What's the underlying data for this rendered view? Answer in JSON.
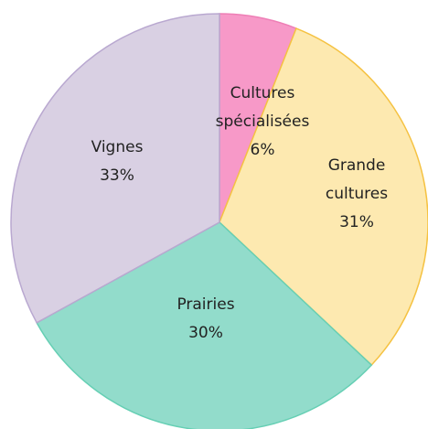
{
  "chart_data": {
    "type": "pie",
    "categories": [
      "Cultures spécialisées",
      "Grande cultures",
      "Prairies",
      "Vignes"
    ],
    "values": [
      6,
      31,
      30,
      33
    ],
    "value_labels": [
      "6%",
      "31%",
      "30%",
      "33%"
    ],
    "colors": [
      "#f799c8",
      "#fde9b0",
      "#92dccb",
      "#d9d0e3"
    ],
    "edge_colors": [
      "#ee7fb6",
      "#f5c242",
      "#66cfb4",
      "#b9a8d0"
    ]
  }
}
